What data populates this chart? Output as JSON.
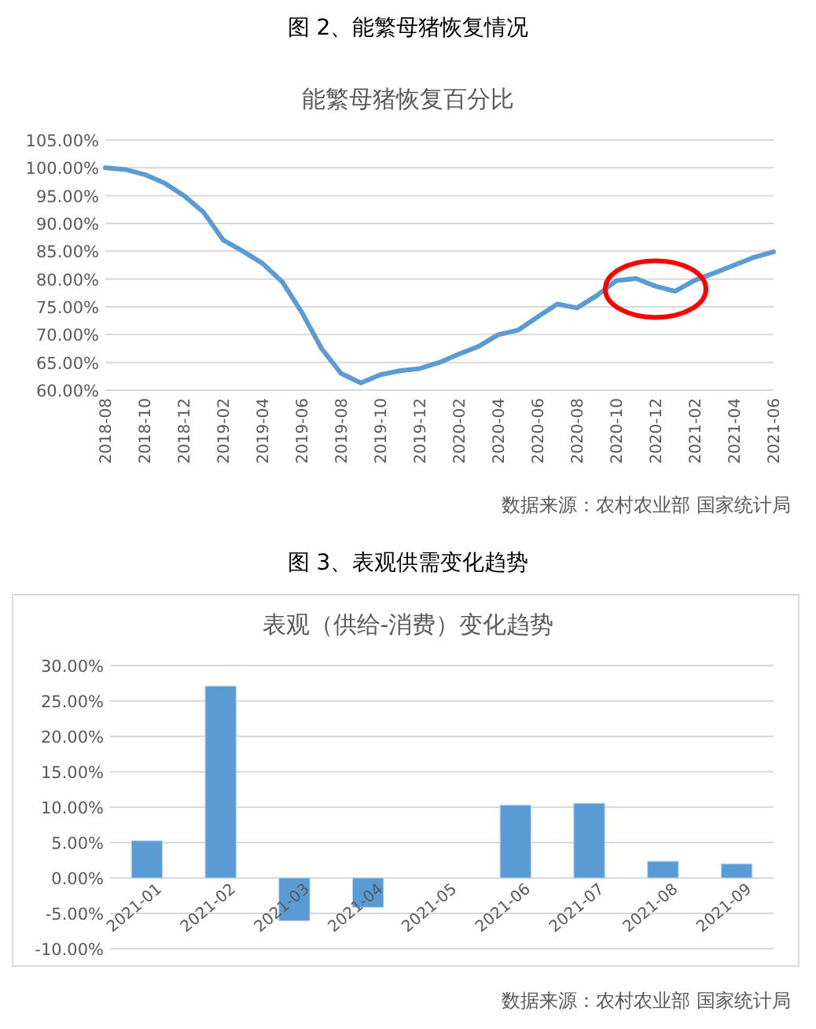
{
  "chart_data": [
    {
      "type": "line",
      "title": "图 2、能繁母猪恢复情况",
      "subtitle": "能繁母猪恢复百分比",
      "categories": [
        "2018-08",
        null,
        "2018-10",
        null,
        "2018-12",
        null,
        "2019-02",
        null,
        "2019-04",
        null,
        "2019-06",
        null,
        "2019-08",
        null,
        "2019-10",
        null,
        "2019-12",
        null,
        "2020-02",
        null,
        "2020-04",
        null,
        "2020-06",
        null,
        "2020-08",
        null,
        "2020-10",
        null,
        "2020-12",
        null,
        "2021-02",
        null,
        "2021-04",
        null,
        "2021-06"
      ],
      "series": [
        {
          "color": "#5b9bd5",
          "values": [
            100,
            99.7,
            98.8,
            97.3,
            95,
            92,
            87,
            85,
            82.8,
            79.5,
            74,
            67.5,
            63,
            61.3,
            62.8,
            63.5,
            63.9,
            65,
            66.5,
            67.9,
            70,
            70.8,
            73.2,
            75.5,
            74.8,
            77,
            79.7,
            80.1,
            78.7,
            77.8,
            79.8,
            81.1,
            82.5,
            83.9,
            84.9
          ]
        }
      ],
      "ylim": [
        60,
        105
      ],
      "yticks": [
        {
          "value": 60,
          "label": "60.00%"
        },
        {
          "value": 65,
          "label": "65.00%"
        },
        {
          "value": 70,
          "label": "70.00%"
        },
        {
          "value": 75,
          "label": "75.00%"
        },
        {
          "value": 80,
          "label": "80.00%"
        },
        {
          "value": 85,
          "label": "85.00%"
        },
        {
          "value": 90,
          "label": "90.00%"
        },
        {
          "value": 95,
          "label": "95.00%"
        },
        {
          "value": 100,
          "label": "100.00%"
        },
        {
          "value": 105,
          "label": "105.00%"
        }
      ],
      "grid": "y",
      "annotations": [
        "数据来源：农村农业部 国家统计局"
      ]
    },
    {
      "type": "bar",
      "title": "图 3、表观供需变化趋势",
      "subtitle": "表观（供给-消费）变化趋势",
      "categories": [
        "2021-01",
        "2021-02",
        "2021-03",
        "2021-04",
        "2021-05",
        "2021-06",
        "2021-07",
        "2021-08",
        "2021-09"
      ],
      "values": [
        5.25,
        27.1,
        -6.05,
        -4.15,
        null,
        10.3,
        10.55,
        2.35,
        2.0
      ],
      "color": "#5b9bd5",
      "ylim": [
        -10,
        30
      ],
      "yticks": [
        {
          "value": -10,
          "label": "-10.00%"
        },
        {
          "value": -5,
          "label": "-5.00%"
        },
        {
          "value": 0,
          "label": "0.00%"
        },
        {
          "value": 5,
          "label": "5.00%"
        },
        {
          "value": 10,
          "label": "10.00%"
        },
        {
          "value": 15,
          "label": "15.00%"
        },
        {
          "value": 20,
          "label": "20.00%"
        },
        {
          "value": 25,
          "label": "25.00%"
        },
        {
          "value": 30,
          "label": "30.00%"
        }
      ],
      "grid": "y",
      "annotations": [
        "数据来源：农村农业部 国家统计局"
      ]
    }
  ]
}
